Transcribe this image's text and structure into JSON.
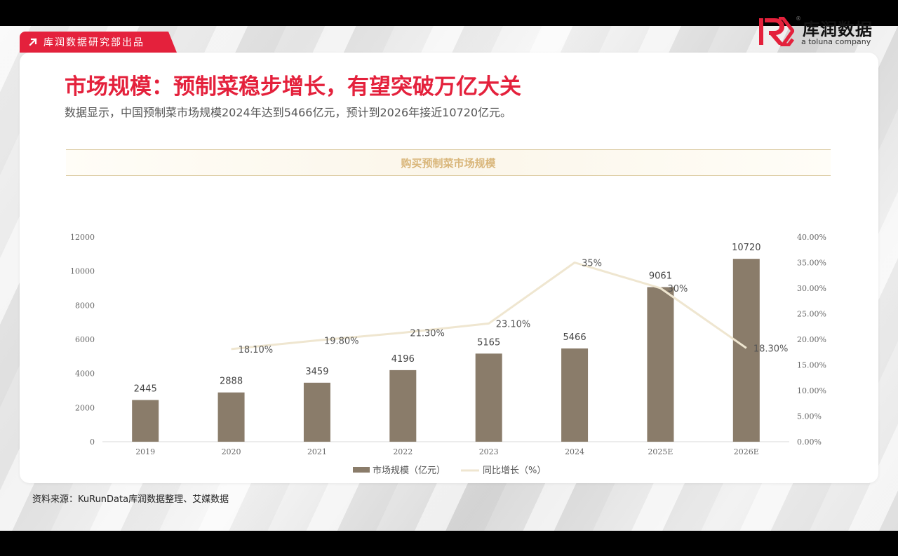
{
  "tag": {
    "label": "库润数据研究部出品"
  },
  "logo": {
    "cn": "库润数据",
    "en": "a toluna company",
    "reg": "®"
  },
  "title": "市场规模：预制菜稳步增长，有望突破万亿大关",
  "subtitle": "数据显示，中国预制菜市场规模2024年达到5466亿元，预计到2026年接近10720亿元。",
  "source": "资料来源：KuRunData库润数据整理、艾媒数据",
  "colors": {
    "accent": "#e4213c",
    "bar": "#8a7c6a",
    "line": "#efe6d0"
  },
  "chart_data": {
    "type": "bar+line",
    "title": "购买预制菜市场规模",
    "categories": [
      "2019",
      "2020",
      "2021",
      "2022",
      "2023",
      "2024",
      "2025E",
      "2026E"
    ],
    "series": [
      {
        "name": "市场规模（亿元）",
        "type": "bar",
        "axis": "left",
        "values": [
          2445,
          2888,
          3459,
          4196,
          5165,
          5466,
          9061,
          10720
        ],
        "labels": [
          "2445",
          "2888",
          "3459",
          "4196",
          "5165",
          "5466",
          "9061",
          "10720"
        ]
      },
      {
        "name": "同比增长（%）",
        "type": "line",
        "axis": "right",
        "values": [
          null,
          18.1,
          19.8,
          21.3,
          23.1,
          35,
          30,
          18.3
        ],
        "labels": [
          "",
          "18.10%",
          "19.80%",
          "21.30%",
          "23.10%",
          "35%",
          "30%",
          "18.30%"
        ]
      }
    ],
    "y_left": {
      "ylim": [
        0,
        12000
      ],
      "ticks": [
        "0",
        "2000",
        "4000",
        "6000",
        "8000",
        "10000",
        "12000"
      ]
    },
    "y_right": {
      "ylim": [
        0,
        40
      ],
      "ticks": [
        "0.00%",
        "5.00%",
        "10.00%",
        "15.00%",
        "20.00%",
        "25.00%",
        "30.00%",
        "35.00%",
        "40.00%"
      ]
    },
    "grid": false,
    "legend": "bottom"
  }
}
